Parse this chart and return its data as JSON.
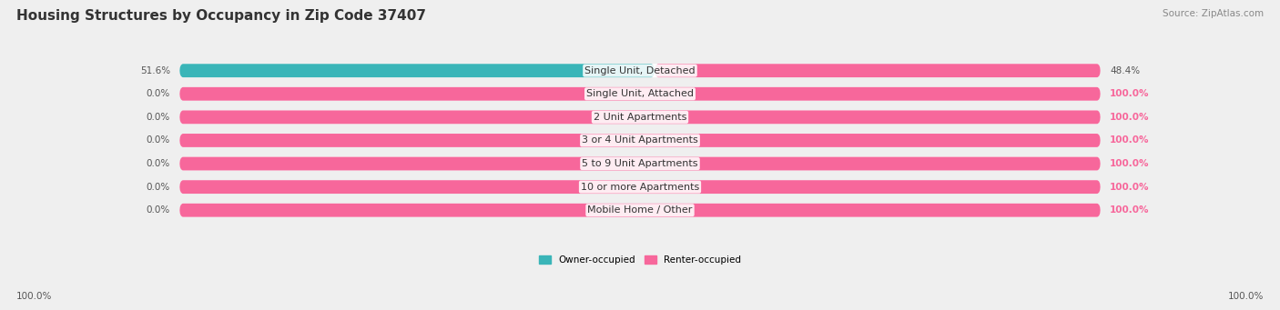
{
  "title": "Housing Structures by Occupancy in Zip Code 37407",
  "source": "Source: ZipAtlas.com",
  "categories": [
    "Single Unit, Detached",
    "Single Unit, Attached",
    "2 Unit Apartments",
    "3 or 4 Unit Apartments",
    "5 to 9 Unit Apartments",
    "10 or more Apartments",
    "Mobile Home / Other"
  ],
  "owner_pct": [
    51.6,
    0.0,
    0.0,
    0.0,
    0.0,
    0.0,
    0.0
  ],
  "renter_pct": [
    48.4,
    100.0,
    100.0,
    100.0,
    100.0,
    100.0,
    100.0
  ],
  "owner_color": "#3ab5b8",
  "renter_color": "#f7679b",
  "bg_color": "#efefef",
  "bar_bg_color": "#ffffff",
  "bar_height": 0.58,
  "title_fontsize": 11,
  "label_fontsize": 8.0,
  "tick_fontsize": 7.5,
  "source_fontsize": 7.5,
  "left_label_color": "#555555",
  "right_label_100_color": "#f7679b",
  "right_label_other_color": "#555555",
  "cat_label_color": "#333333",
  "legend_owner": "Owner-occupied",
  "legend_renter": "Renter-occupied",
  "bottom_left_label": "100.0%",
  "bottom_right_label": "100.0%"
}
